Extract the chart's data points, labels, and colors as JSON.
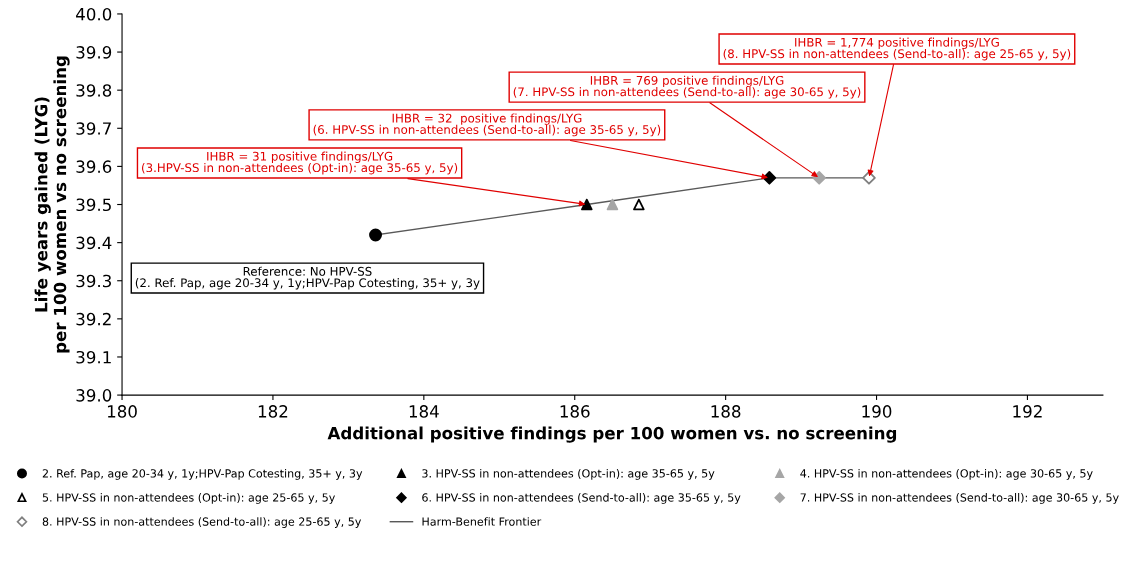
{
  "chart_data": {
    "type": "scatter",
    "xlabel": "Additional positive findings per 100 women vs. no screening",
    "ylabel": "Life years gained (LYG)\nper 100 women vs no screening",
    "xlim": [
      180,
      193
    ],
    "xticks": [
      180,
      182,
      184,
      186,
      188,
      190,
      192
    ],
    "ylim": [
      39.0,
      40.0
    ],
    "yticks": [
      {
        "value": 39.0,
        "label": "39.0"
      },
      39.1,
      39.2,
      39.3,
      39.4,
      39.5,
      39.6,
      39.7,
      39.8,
      39.9,
      {
        "value": 40.0,
        "label": "40.0"
      }
    ],
    "grid": false,
    "legend": "bottom",
    "series": [
      {
        "name": "Harm-Benefit Frontier",
        "type": "line",
        "color": "#595959",
        "marker": "none",
        "line_style": "solid",
        "x": [
          183.36,
          186.16,
          188.58,
          189.24,
          189.9
        ],
        "values": [
          39.42,
          39.5,
          39.57,
          39.57,
          39.57
        ]
      },
      {
        "name": "2. Ref. Pap, age 20-34 y, 1y;HPV-Pap Cotesting, 35+ y, 3y",
        "color": "#000000",
        "marker": "circle",
        "x": [
          183.36
        ],
        "values": [
          39.42
        ]
      },
      {
        "name": "3. HPV-SS in non-attendees (Opt-in): age 35-65 y, 5y",
        "color": "#000000",
        "marker": "triangle",
        "x": [
          186.16
        ],
        "values": [
          39.5
        ]
      },
      {
        "name": "4. HPV-SS in non-attendees (Opt-in): age 30-65 y, 5y",
        "color": "#a6a6a6",
        "marker": "triangle",
        "x": [
          186.5
        ],
        "values": [
          39.5
        ]
      },
      {
        "name": "5. HPV-SS in non-attendees (Opt-in): age 25-65 y, 5y",
        "color": "#000000",
        "marker": "triangle-open",
        "x": [
          186.85
        ],
        "values": [
          39.5
        ]
      },
      {
        "name": "6. HPV-SS in non-attendees (Send-to-all): age 35-65 y, 5y",
        "color": "#000000",
        "marker": "diamond",
        "x": [
          188.58
        ],
        "values": [
          39.57
        ]
      },
      {
        "name": "7. HPV-SS in non-attendees (Send-to-all): age 30-65 y, 5y",
        "color": "#a6a6a6",
        "marker": "diamond",
        "x": [
          189.24
        ],
        "values": [
          39.57
        ]
      },
      {
        "name": "8. HPV-SS in non-attendees (Send-to-all): age 25-65 y, 5y",
        "color": "#7f7f7f",
        "marker": "diamond-open",
        "x": [
          189.9
        ],
        "values": [
          39.57
        ]
      }
    ],
    "annotations": [
      "Reference: No HPV-SS\n(2. Ref. Pap, age 20-34 y, 1y;HPV-Pap Cotesting, 35+ y, 3y",
      {
        "text": "IHBR = 31 positive findings/LYG\n(3.HPV-SS in non-attendees (Opt-in): age 35-65 y, 5y)",
        "x": 186.16,
        "y": 39.5
      },
      {
        "text": "IHBR = 32  positive findings/LYG\n(6. HPV-SS in non-attendees (Send-to-all): age 35-65 y, 5y)",
        "x": 188.58,
        "y": 39.57
      },
      {
        "text": "IHBR = 769 positive findings/LYG\n(7. HPV-SS in non-attendees (Send-to-all): age 30-65 y, 5y)",
        "x": 189.24,
        "y": 39.57
      },
      {
        "text": "IHBR = 1,774 positive findings/LYG\n(8. HPV-SS in non-attendees (Send-to-all): age 25-65 y, 5y)",
        "x": 189.9,
        "y": 39.57
      }
    ]
  }
}
